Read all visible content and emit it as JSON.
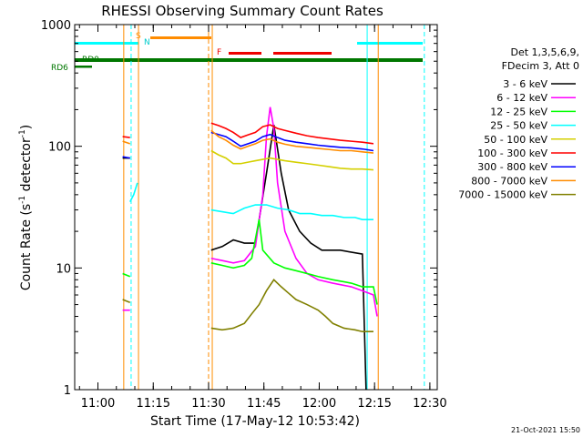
{
  "chart_data": {
    "type": "line",
    "title": "RHESSI Observing Summary Count Rates",
    "xlabel": "Start Time (17-May-12 10:53:42)",
    "ylabel_main": "Count Rate (s",
    "ylabel_sup1": "-1",
    "ylabel_mid": " detector",
    "ylabel_sup2": "-1",
    "ylabel_end": ")",
    "y_scale": "log",
    "ylim": [
      1,
      1000
    ],
    "xlim": [
      "10:53:42",
      "12:32"
    ],
    "x_tick_labels": [
      "11:00",
      "11:15",
      "11:30",
      "11:45",
      "12:00",
      "12:15",
      "12:30"
    ],
    "x_tick_minutes": [
      6.3,
      21.3,
      36.3,
      51.3,
      66.3,
      81.3,
      96.3
    ],
    "y_tick_labels": [
      "1",
      "10",
      "100",
      "1000"
    ],
    "y_tick_values": [
      1,
      10,
      100,
      1000
    ],
    "legend_header": [
      "Det 1,3,5,6,9,",
      "FDecim 3, Att 0"
    ],
    "legend_position": "right",
    "flag_labels": {
      "saa": "S",
      "night": "N",
      "flare": "F",
      "rd0": "RD0",
      "rd6": "RD6"
    },
    "series": [
      {
        "name": "3 - 6 keV",
        "color": "#000000",
        "values": [
          [
            13,
            80
          ],
          [
            15,
            80
          ],
          [
            37,
            14
          ],
          [
            40,
            15
          ],
          [
            43,
            17
          ],
          [
            46,
            16
          ],
          [
            49,
            16
          ],
          [
            52,
            60
          ],
          [
            54,
            150
          ],
          [
            56,
            60
          ],
          [
            58,
            30
          ],
          [
            61,
            20
          ],
          [
            64,
            16
          ],
          [
            67,
            14
          ],
          [
            70,
            14
          ],
          [
            72,
            14
          ],
          [
            78,
            13
          ],
          [
            79,
            1
          ]
        ]
      },
      {
        "name": "6 - 12 keV",
        "color": "#ff00ff",
        "values": [
          [
            13,
            4.5
          ],
          [
            15,
            4.5
          ],
          [
            37,
            12
          ],
          [
            40,
            11.5
          ],
          [
            43,
            11
          ],
          [
            46,
            11.5
          ],
          [
            49,
            15
          ],
          [
            51,
            40
          ],
          [
            52,
            120
          ],
          [
            53,
            210
          ],
          [
            54,
            140
          ],
          [
            55,
            50
          ],
          [
            57,
            20
          ],
          [
            60,
            12
          ],
          [
            63,
            9
          ],
          [
            66,
            8
          ],
          [
            70,
            7.5
          ],
          [
            75,
            7
          ],
          [
            78,
            6.5
          ],
          [
            81,
            6
          ],
          [
            82,
            4
          ]
        ]
      },
      {
        "name": "12 - 25 keV",
        "color": "#00ff00",
        "values": [
          [
            13,
            9
          ],
          [
            15,
            8.5
          ],
          [
            37,
            11
          ],
          [
            40,
            10.5
          ],
          [
            43,
            10
          ],
          [
            46,
            10.5
          ],
          [
            48,
            12
          ],
          [
            50,
            25
          ],
          [
            51,
            14
          ],
          [
            54,
            11
          ],
          [
            57,
            10
          ],
          [
            60,
            9.5
          ],
          [
            63,
            9
          ],
          [
            66,
            8.5
          ],
          [
            70,
            8
          ],
          [
            75,
            7.5
          ],
          [
            78,
            7
          ],
          [
            81,
            7
          ],
          [
            82,
            5
          ]
        ]
      },
      {
        "name": "25 - 50 keV",
        "color": "#00ffff",
        "values": [
          [
            15,
            35
          ],
          [
            16,
            40
          ],
          [
            17,
            50
          ],
          [
            37,
            30
          ],
          [
            40,
            29
          ],
          [
            43,
            28
          ],
          [
            46,
            31
          ],
          [
            49,
            33
          ],
          [
            52,
            33
          ],
          [
            55,
            31
          ],
          [
            58,
            30
          ],
          [
            61,
            28
          ],
          [
            64,
            28
          ],
          [
            67,
            27
          ],
          [
            70,
            27
          ],
          [
            73,
            26
          ],
          [
            76,
            26
          ],
          [
            78,
            25
          ],
          [
            81,
            25
          ]
        ]
      },
      {
        "name": "50 - 100 keV",
        "color": "#d4d000",
        "values": [
          [
            37,
            92
          ],
          [
            39,
            85
          ],
          [
            41,
            80
          ],
          [
            43,
            72
          ],
          [
            45,
            72
          ],
          [
            47,
            74
          ],
          [
            49,
            76
          ],
          [
            51,
            78
          ],
          [
            53,
            80
          ],
          [
            55,
            78
          ],
          [
            57,
            76
          ],
          [
            60,
            74
          ],
          [
            63,
            72
          ],
          [
            66,
            70
          ],
          [
            69,
            68
          ],
          [
            72,
            66
          ],
          [
            75,
            65
          ],
          [
            78,
            65
          ],
          [
            81,
            64
          ]
        ]
      },
      {
        "name": "100 - 300 keV",
        "color": "#ff0000",
        "values": [
          [
            13,
            120
          ],
          [
            15,
            118
          ],
          [
            37,
            155
          ],
          [
            39,
            148
          ],
          [
            41,
            140
          ],
          [
            43,
            130
          ],
          [
            45,
            118
          ],
          [
            47,
            124
          ],
          [
            49,
            130
          ],
          [
            51,
            145
          ],
          [
            53,
            150
          ],
          [
            55,
            140
          ],
          [
            57,
            135
          ],
          [
            60,
            128
          ],
          [
            63,
            122
          ],
          [
            66,
            118
          ],
          [
            69,
            115
          ],
          [
            72,
            112
          ],
          [
            75,
            110
          ],
          [
            78,
            108
          ],
          [
            81,
            105
          ]
        ]
      },
      {
        "name": "300 - 800 keV",
        "color": "#0000ff",
        "values": [
          [
            13,
            82
          ],
          [
            15,
            80
          ],
          [
            37,
            130
          ],
          [
            39,
            125
          ],
          [
            41,
            120
          ],
          [
            43,
            110
          ],
          [
            45,
            100
          ],
          [
            47,
            105
          ],
          [
            49,
            110
          ],
          [
            51,
            120
          ],
          [
            53,
            125
          ],
          [
            55,
            118
          ],
          [
            57,
            112
          ],
          [
            60,
            108
          ],
          [
            63,
            105
          ],
          [
            66,
            102
          ],
          [
            69,
            100
          ],
          [
            72,
            98
          ],
          [
            75,
            97
          ],
          [
            78,
            95
          ],
          [
            81,
            92
          ]
        ]
      },
      {
        "name": "800 - 7000 keV",
        "color": "#ff8c00",
        "values": [
          [
            13,
            110
          ],
          [
            15,
            105
          ],
          [
            37,
            135
          ],
          [
            39,
            120
          ],
          [
            41,
            112
          ],
          [
            43,
            102
          ],
          [
            45,
            95
          ],
          [
            47,
            100
          ],
          [
            49,
            105
          ],
          [
            51,
            112
          ],
          [
            53,
            115
          ],
          [
            55,
            108
          ],
          [
            57,
            104
          ],
          [
            60,
            100
          ],
          [
            63,
            98
          ],
          [
            66,
            96
          ],
          [
            69,
            94
          ],
          [
            72,
            92
          ],
          [
            75,
            92
          ],
          [
            78,
            90
          ],
          [
            81,
            88
          ]
        ]
      },
      {
        "name": "7000 - 15000 keV",
        "color": "#808000",
        "values": [
          [
            13,
            5.5
          ],
          [
            15,
            5.2
          ],
          [
            37,
            3.2
          ],
          [
            40,
            3.1
          ],
          [
            43,
            3.2
          ],
          [
            46,
            3.5
          ],
          [
            48,
            4.2
          ],
          [
            50,
            5
          ],
          [
            52,
            6.5
          ],
          [
            54,
            8
          ],
          [
            56,
            7
          ],
          [
            58,
            6.2
          ],
          [
            60,
            5.5
          ],
          [
            63,
            5
          ],
          [
            66,
            4.5
          ],
          [
            68,
            4
          ],
          [
            70,
            3.5
          ],
          [
            73,
            3.2
          ],
          [
            76,
            3.1
          ],
          [
            78,
            3
          ],
          [
            81,
            3
          ]
        ]
      }
    ]
  },
  "timestamp": "21-Oct-2021 15:50"
}
